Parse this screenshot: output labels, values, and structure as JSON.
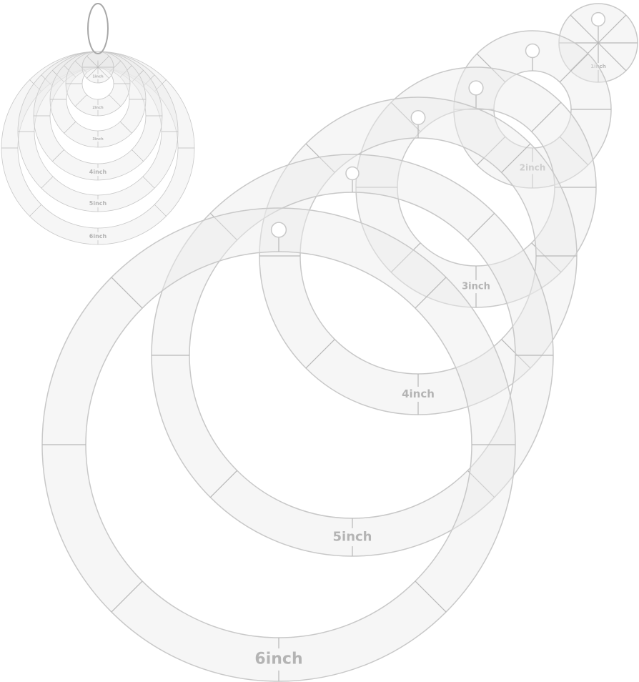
{
  "product": {
    "rings": [
      {
        "label": "6inch"
      },
      {
        "label": "5inch"
      },
      {
        "label": "4inch"
      },
      {
        "label": "3inch"
      },
      {
        "label": "2inch"
      },
      {
        "label": "1inch"
      }
    ]
  },
  "thumbnail": {
    "labels": [
      "6inch",
      "5inch",
      "4inch",
      "3inch",
      "2inch",
      "1inch"
    ]
  },
  "colors": {
    "ring_fill": "#ececec",
    "ring_stroke": "#c8c8c8",
    "label": "#b4b4b4",
    "keyring": "#a8a8a8"
  }
}
